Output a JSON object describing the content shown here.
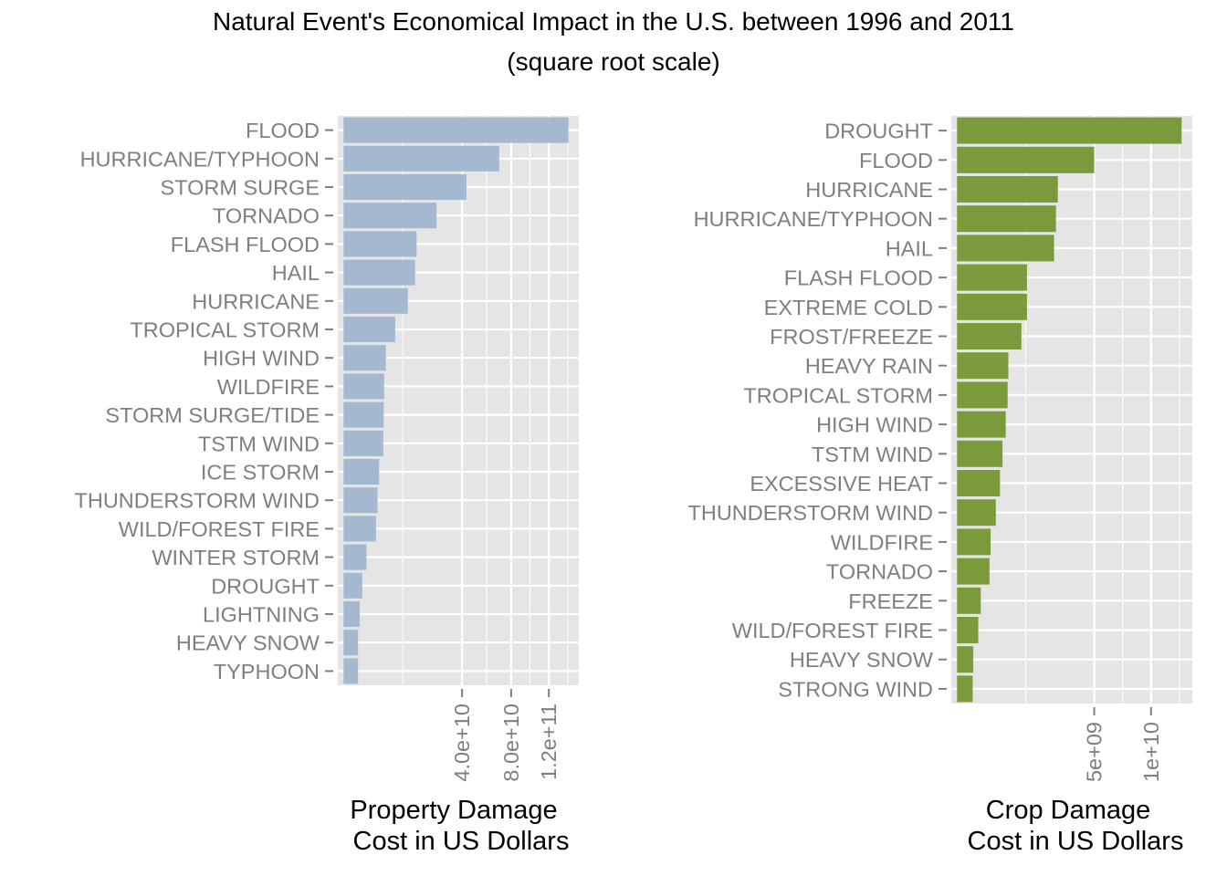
{
  "title": "Natural Event's Economical Impact in the U.S. between 1996 and 2011",
  "subtitle": "(square root scale)",
  "colors": {
    "panel_background": "#e5e5e5",
    "grid": "#ffffff",
    "tick_text": "#7f7f7f",
    "property_bar": "#a4b9d0",
    "crop_bar": "#7a9a3c"
  },
  "chart_data": [
    {
      "type": "bar",
      "orientation": "horizontal",
      "x_scale": "sqrt",
      "xlabel_line1": "Property Damage",
      "xlabel_line2": "Cost in US Dollars",
      "ylabel": "",
      "xlim": [
        0,
        150000000000
      ],
      "xticks": [
        40000000000,
        80000000000,
        120000000000
      ],
      "xtick_labels": [
        "4.0e+10",
        "8.0e+10",
        "1.2e+11"
      ],
      "grid": true,
      "bar_color": "#a4b9d0",
      "categories": [
        "FLOOD",
        "HURRICANE/TYPHOON",
        "STORM SURGE",
        "TORNADO",
        "FLASH FLOOD",
        "HAIL",
        "HURRICANE",
        "TROPICAL STORM",
        "HIGH WIND",
        "WILDFIRE",
        "STORM SURGE/TIDE",
        "TSTM WIND",
        "ICE STORM",
        "THUNDERSTORM WIND",
        "WILD/FOREST FIRE",
        "WINTER STORM",
        "DROUGHT",
        "LIGHTNING",
        "HEAVY SNOW",
        "TYPHOON"
      ],
      "values": [
        144000000000,
        69000000000,
        43000000000,
        24600000000,
        15200000000,
        14600000000,
        11800000000,
        7600000000,
        5100000000,
        4700000000,
        4600000000,
        4500000000,
        3600000000,
        3300000000,
        3000000000,
        1500000000,
        1000000000,
        750000000,
        600000000,
        600000000
      ]
    },
    {
      "type": "bar",
      "orientation": "horizontal",
      "x_scale": "sqrt",
      "xlabel_line1": "Crop Damage",
      "xlabel_line2": "Cost in US Dollars",
      "ylabel": "",
      "xlim": [
        0,
        14000000000
      ],
      "xticks": [
        5000000000,
        10000000000
      ],
      "xtick_labels": [
        "5e+09",
        "1e+10"
      ],
      "grid": true,
      "bar_color": "#7a9a3c",
      "categories": [
        "DROUGHT",
        "FLOOD",
        "HURRICANE",
        "HURRICANE/TYPHOON",
        "HAIL",
        "FLASH FLOOD",
        "EXTREME COLD",
        "FROST/FREEZE",
        "HEAVY RAIN",
        "TROPICAL STORM",
        "HIGH WIND",
        "TSTM WIND",
        "EXCESSIVE HEAT",
        "THUNDERSTORM WIND",
        "WILDFIRE",
        "TORNADO",
        "FREEZE",
        "WILD/FOREST FIRE",
        "HEAVY SNOW",
        "STRONG WIND"
      ],
      "values": [
        13400000000,
        5000000000,
        2700000000,
        2600000000,
        2500000000,
        1300000000,
        1300000000,
        1100000000,
        700000000,
        680000000,
        630000000,
        550000000,
        490000000,
        400000000,
        300000000,
        280000000,
        150000000,
        120000000,
        70000000,
        65000000
      ]
    }
  ]
}
